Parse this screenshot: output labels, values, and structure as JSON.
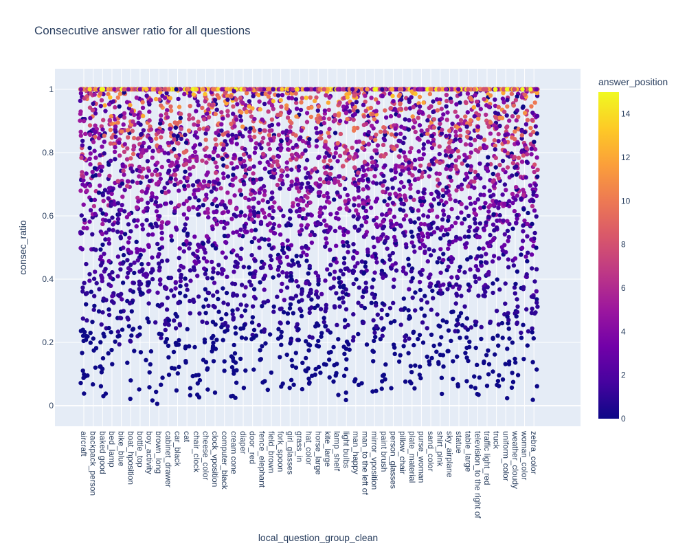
{
  "chart_data": {
    "type": "scatter",
    "title": "Consecutive answer ratio for all questions",
    "xlabel": "local_question_group_clean",
    "ylabel": "consec_ratio",
    "ylim": [
      -0.065,
      1.065
    ],
    "y_ticks": [
      0,
      0.2,
      0.4,
      0.6,
      0.8,
      1
    ],
    "y_tick_labels": [
      "0",
      "0.2",
      "0.4",
      "0.6",
      "0.8",
      "1"
    ],
    "grid": true,
    "categories": [
      "aircraft",
      "backpack_person",
      "baked good",
      "bed_lamp",
      "bike_blue",
      "boat_hposition",
      "bottle_top",
      "boy_activity",
      "brown_long",
      "cabinet_drawer",
      "car_black",
      "cat",
      "chair_clock",
      "cheese_color",
      "clock_vposition",
      "computer_black",
      "cream cone",
      "diaper",
      "door_red",
      "fence_elephant",
      "field_brown",
      "fork_spoon",
      "girl_glasses",
      "grass_in",
      "hat_color",
      "horse_large",
      "kite_large",
      "lamp_shelf",
      "light bulbs",
      "man_happy",
      "man_to the left of",
      "mirror_vposition",
      "paint brush",
      "person_glasses",
      "pillow_chair",
      "plate_material",
      "purse_woman",
      "sand_color",
      "shirt_pink",
      "sky_airplane",
      "statue",
      "table_large",
      "television_to the right of",
      "traffic light_red",
      "truck",
      "uniform_color",
      "weather_cloudy",
      "woman_color",
      "zebra_color"
    ],
    "points_per_category": 100,
    "color_variable": {
      "name": "answer_position",
      "range": [
        0,
        15
      ],
      "ticks": [
        0,
        2,
        4,
        6,
        8,
        10,
        12,
        14
      ],
      "tick_labels": [
        "0",
        "2",
        "4",
        "6",
        "8",
        "10",
        "12",
        "14"
      ],
      "colorscale": [
        "#0d0887",
        "#46039f",
        "#7201a8",
        "#9c179e",
        "#bd3786",
        "#d8576b",
        "#ed7953",
        "#fb9f3a",
        "#fdca26",
        "#f0f921"
      ]
    },
    "legend_placement": "right"
  },
  "colors": {
    "plot_background": "#e5ecf6",
    "grid": "#ffffff",
    "text": "#2a3f5f"
  }
}
